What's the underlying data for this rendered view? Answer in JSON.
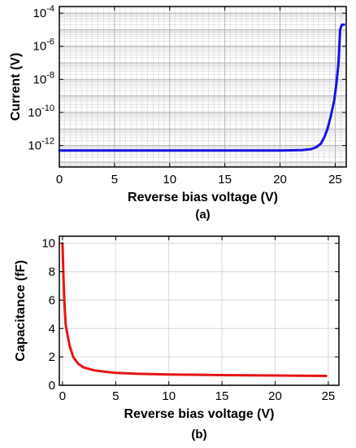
{
  "chart_data": [
    {
      "panel_label": "(a)",
      "type": "line",
      "xlabel": "Reverse bias voltage (V)",
      "ylabel": "Current (V)",
      "xlim": [
        0,
        26
      ],
      "ylim_log10": [
        -13.3,
        -3.6
      ],
      "y_scale": "log",
      "grid": true,
      "minor_grid": true,
      "x_ticks": [
        "0",
        "5",
        "10",
        "15",
        "20",
        "25"
      ],
      "y_ticks": [
        {
          "base": "10",
          "exp": "-12"
        },
        {
          "base": "10",
          "exp": "-10"
        },
        {
          "base": "10",
          "exp": "-8"
        },
        {
          "base": "10",
          "exp": "-6"
        },
        {
          "base": "10",
          "exp": "-4"
        }
      ],
      "series": [
        {
          "color": "#1414e6",
          "x": [
            0,
            5,
            10,
            15,
            20,
            22,
            22.8,
            23.3,
            23.7,
            24.0,
            24.3,
            24.6,
            24.9,
            25.1,
            25.3,
            25.45,
            25.6,
            25.8
          ],
          "y": [
            5e-13,
            5e-13,
            5e-13,
            5e-13,
            5e-13,
            5.3e-13,
            6e-13,
            8e-13,
            1.3e-12,
            3e-12,
            1e-11,
            6e-11,
            5e-10,
            5e-09,
            1e-07,
            1e-05,
            2e-05,
            2e-05
          ]
        }
      ]
    },
    {
      "panel_label": "(b)",
      "type": "line",
      "xlabel": "Reverse bias voltage (V)",
      "ylabel": "Capacitance (fF)",
      "xlim": [
        -0.3,
        26
      ],
      "ylim": [
        0,
        10.5
      ],
      "grid": true,
      "x_ticks": [
        "0",
        "5",
        "10",
        "15",
        "20",
        "25"
      ],
      "y_ticks": [
        "0",
        "2",
        "4",
        "6",
        "8",
        "10"
      ],
      "series": [
        {
          "color": "#e61414",
          "x": [
            0.0,
            0.1,
            0.2,
            0.3,
            0.5,
            0.7,
            1.0,
            1.5,
            2.0,
            3.0,
            4.0,
            5.0,
            7.0,
            10.0,
            15.0,
            20.0,
            24.8
          ],
          "y": [
            10.0,
            7.4,
            5.6,
            4.3,
            3.4,
            2.7,
            2.0,
            1.5,
            1.25,
            1.05,
            0.95,
            0.88,
            0.81,
            0.76,
            0.72,
            0.69,
            0.66
          ]
        }
      ]
    }
  ]
}
